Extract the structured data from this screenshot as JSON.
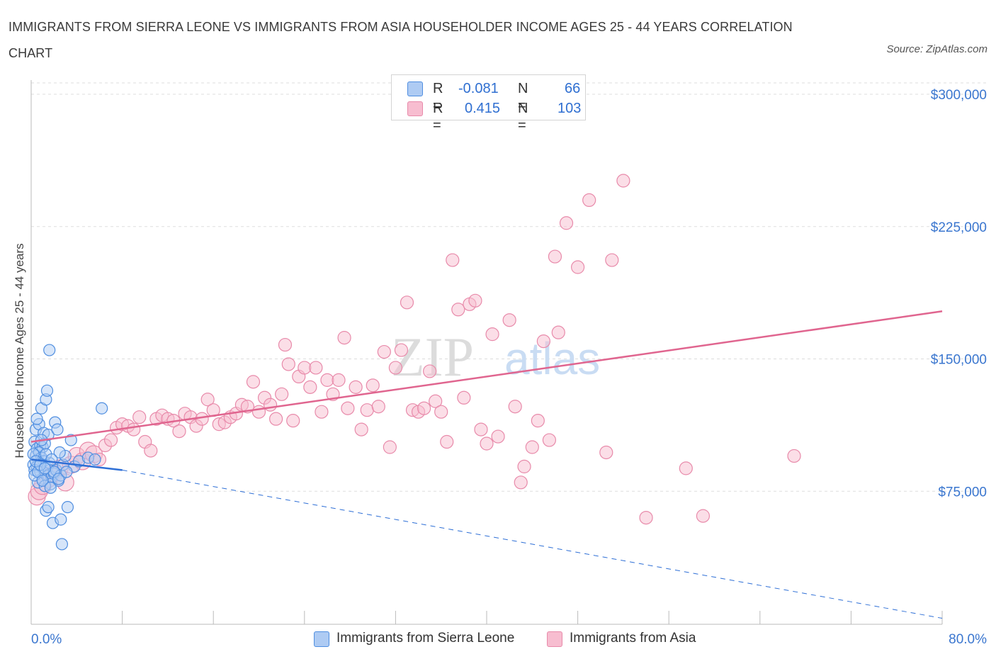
{
  "header": {
    "title": "IMMIGRANTS FROM SIERRA LEONE VS IMMIGRANTS FROM ASIA HOUSEHOLDER INCOME AGES 25 - 44 YEARS CORRELATION CHART",
    "source": "Source: ZipAtlas.com"
  },
  "legend": {
    "r_label": "R =",
    "n_label": "N =",
    "rows": [
      {
        "r": "-0.081",
        "n": "66"
      },
      {
        "r": "0.415",
        "n": "103"
      }
    ]
  },
  "colors": {
    "blue_fill": "#aecbf3",
    "blue_stroke": "#4f8ee0",
    "blue_line": "#2e6fd6",
    "pink_fill": "#f7bdd0",
    "pink_stroke": "#e88aaa",
    "pink_line": "#e0658f",
    "tick_label": "#3a76cf",
    "grid": "#dddddd",
    "watermark": "#d9d9d9"
  },
  "watermark": {
    "part1": "ZIP",
    "part2": "atlas"
  },
  "chart_data": {
    "type": "scatter",
    "xlabel": "",
    "ylabel": "Householder Income Ages 25 - 44 years",
    "xlim": [
      0,
      80
    ],
    "ylim": [
      0,
      300000
    ],
    "x_tick_labels": [
      {
        "value": 0,
        "label": "0.0%"
      },
      {
        "value": 80,
        "label": "80.0%"
      }
    ],
    "y_tick_labels": [
      {
        "value": 75000,
        "label": "$75,000"
      },
      {
        "value": 150000,
        "label": "$150,000"
      },
      {
        "value": 225000,
        "label": "$225,000"
      },
      {
        "value": 300000,
        "label": "$300,000"
      }
    ],
    "grid": "horizontal dashed",
    "legend_position": "bottom",
    "series": [
      {
        "name": "Immigrants from Sierra Leone",
        "color": "#4f8ee0",
        "trend": {
          "x0": 0,
          "y0": 93000,
          "x1": 8,
          "y1": 87000,
          "dashed_to_x": 80,
          "dashed_to_y": 3000
        },
        "points": [
          [
            0.3,
            103000
          ],
          [
            0.5,
            99000
          ],
          [
            0.4,
            95000
          ],
          [
            0.6,
            93000
          ],
          [
            0.2,
            90000
          ],
          [
            0.8,
            101000
          ],
          [
            1.0,
            100000
          ],
          [
            1.2,
            102000
          ],
          [
            0.7,
            97000
          ],
          [
            0.9,
            94000
          ],
          [
            1.1,
            92000
          ],
          [
            0.5,
            89000
          ],
          [
            0.3,
            87000
          ],
          [
            0.8,
            86000
          ],
          [
            1.4,
            88000
          ],
          [
            1.6,
            91000
          ],
          [
            1.3,
            96000
          ],
          [
            1.5,
            84000
          ],
          [
            1.0,
            82000
          ],
          [
            0.6,
            80000
          ],
          [
            1.8,
            83000
          ],
          [
            2.0,
            85000
          ],
          [
            2.2,
            87000
          ],
          [
            1.7,
            79000
          ],
          [
            1.2,
            78000
          ],
          [
            2.4,
            81000
          ],
          [
            2.6,
            84000
          ],
          [
            2.8,
            90000
          ],
          [
            3.0,
            95000
          ],
          [
            0.4,
            110000
          ],
          [
            0.7,
            113000
          ],
          [
            1.1,
            108000
          ],
          [
            1.5,
            107000
          ],
          [
            2.1,
            114000
          ],
          [
            2.3,
            110000
          ],
          [
            0.9,
            122000
          ],
          [
            1.3,
            127000
          ],
          [
            1.4,
            132000
          ],
          [
            1.6,
            155000
          ],
          [
            0.5,
            116000
          ],
          [
            0.9,
            104000
          ],
          [
            2.5,
            97000
          ],
          [
            3.5,
            104000
          ],
          [
            3.8,
            89000
          ],
          [
            4.2,
            92000
          ],
          [
            5.0,
            94000
          ],
          [
            5.6,
            93000
          ],
          [
            6.2,
            122000
          ],
          [
            1.3,
            64000
          ],
          [
            1.5,
            66000
          ],
          [
            1.9,
            57000
          ],
          [
            2.6,
            59000
          ],
          [
            3.2,
            66000
          ],
          [
            2.7,
            45000
          ],
          [
            0.3,
            84000
          ],
          [
            0.6,
            86000
          ],
          [
            1.0,
            81000
          ],
          [
            1.7,
            77000
          ],
          [
            2.0,
            86000
          ],
          [
            2.4,
            82000
          ],
          [
            3.1,
            86000
          ],
          [
            0.2,
            96000
          ],
          [
            0.4,
            92000
          ],
          [
            0.8,
            90000
          ],
          [
            1.2,
            88000
          ],
          [
            1.8,
            93000
          ]
        ]
      },
      {
        "name": "Immigrants from Asia",
        "color": "#e88aaa",
        "trend": {
          "x0": 0,
          "y0": 103000,
          "x1": 80,
          "y1": 177000
        },
        "points": [
          [
            0.5,
            72000
          ],
          [
            0.7,
            75000
          ],
          [
            1.0,
            78000
          ],
          [
            1.5,
            82000
          ],
          [
            2.0,
            85000
          ],
          [
            2.5,
            88000
          ],
          [
            3.0,
            80000
          ],
          [
            3.5,
            90000
          ],
          [
            4.0,
            95000
          ],
          [
            4.5,
            92000
          ],
          [
            5.0,
            98000
          ],
          [
            5.5,
            96000
          ],
          [
            6.0,
            93000
          ],
          [
            6.5,
            101000
          ],
          [
            7.0,
            104000
          ],
          [
            7.5,
            111000
          ],
          [
            8.0,
            113000
          ],
          [
            8.5,
            112000
          ],
          [
            9.0,
            110000
          ],
          [
            9.5,
            117000
          ],
          [
            10.0,
            103000
          ],
          [
            10.5,
            98000
          ],
          [
            11.0,
            116000
          ],
          [
            11.5,
            118000
          ],
          [
            12.0,
            116000
          ],
          [
            12.5,
            115000
          ],
          [
            13.0,
            109000
          ],
          [
            13.5,
            119000
          ],
          [
            14.0,
            117000
          ],
          [
            14.5,
            112000
          ],
          [
            15.0,
            116000
          ],
          [
            15.5,
            127000
          ],
          [
            16.0,
            121000
          ],
          [
            16.5,
            113000
          ],
          [
            17.0,
            114000
          ],
          [
            17.5,
            117000
          ],
          [
            18.0,
            119000
          ],
          [
            18.5,
            124000
          ],
          [
            19.0,
            123000
          ],
          [
            19.5,
            137000
          ],
          [
            20.0,
            120000
          ],
          [
            20.5,
            128000
          ],
          [
            21.0,
            124000
          ],
          [
            21.5,
            116000
          ],
          [
            22.0,
            130000
          ],
          [
            22.3,
            158000
          ],
          [
            22.6,
            147000
          ],
          [
            23.0,
            115000
          ],
          [
            23.5,
            140000
          ],
          [
            24.0,
            145000
          ],
          [
            24.5,
            134000
          ],
          [
            25.0,
            145000
          ],
          [
            25.5,
            120000
          ],
          [
            26.0,
            138000
          ],
          [
            26.5,
            130000
          ],
          [
            27.0,
            138000
          ],
          [
            27.5,
            162000
          ],
          [
            27.8,
            122000
          ],
          [
            28.5,
            134000
          ],
          [
            29.0,
            110000
          ],
          [
            29.5,
            121000
          ],
          [
            30.0,
            135000
          ],
          [
            30.5,
            123000
          ],
          [
            31.0,
            154000
          ],
          [
            31.5,
            100000
          ],
          [
            32.0,
            145000
          ],
          [
            32.5,
            155000
          ],
          [
            33.0,
            182000
          ],
          [
            33.5,
            121000
          ],
          [
            34.0,
            120000
          ],
          [
            34.5,
            122000
          ],
          [
            35.0,
            143000
          ],
          [
            35.5,
            126000
          ],
          [
            36.0,
            120000
          ],
          [
            36.5,
            103000
          ],
          [
            37.0,
            206000
          ],
          [
            37.5,
            178000
          ],
          [
            38.0,
            128000
          ],
          [
            38.5,
            181000
          ],
          [
            39.0,
            183000
          ],
          [
            39.5,
            110000
          ],
          [
            40.0,
            102000
          ],
          [
            40.5,
            164000
          ],
          [
            41.0,
            106000
          ],
          [
            42.0,
            172000
          ],
          [
            42.5,
            123000
          ],
          [
            43.0,
            80000
          ],
          [
            43.3,
            89000
          ],
          [
            44.0,
            100000
          ],
          [
            44.5,
            115000
          ],
          [
            45.0,
            160000
          ],
          [
            45.5,
            104000
          ],
          [
            46.0,
            208000
          ],
          [
            46.3,
            165000
          ],
          [
            47.0,
            227000
          ],
          [
            48.0,
            202000
          ],
          [
            49.0,
            240000
          ],
          [
            50.5,
            97000
          ],
          [
            51.0,
            206000
          ],
          [
            52.0,
            251000
          ],
          [
            54.0,
            60000
          ],
          [
            57.5,
            88000
          ],
          [
            59.0,
            61000
          ],
          [
            67.0,
            95000
          ]
        ]
      }
    ]
  }
}
